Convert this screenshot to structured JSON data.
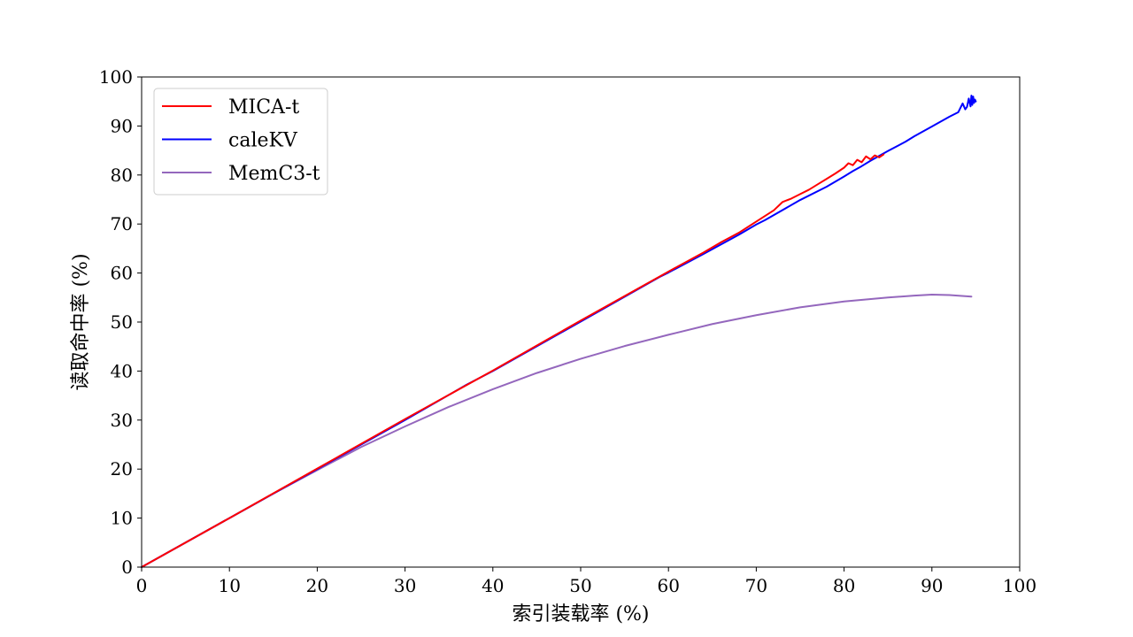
{
  "chart_data": {
    "type": "line",
    "title": "",
    "xlabel": "索引装载率 (%)",
    "ylabel": "读取命中率 (%)",
    "xlim": [
      0,
      100
    ],
    "ylim": [
      0,
      100
    ],
    "xticks": [
      "0",
      "10",
      "20",
      "30",
      "40",
      "50",
      "60",
      "70",
      "80",
      "90",
      "100"
    ],
    "yticks": [
      "0",
      "10",
      "20",
      "30",
      "40",
      "50",
      "60",
      "70",
      "80",
      "90",
      "100"
    ],
    "grid": false,
    "legend_position": "upper-left",
    "series": [
      {
        "name": "MICA-t",
        "color": "#ff0000",
        "x": [
          0,
          10,
          20,
          30,
          40,
          50,
          60,
          64,
          66,
          68,
          70,
          72,
          73,
          74,
          75,
          76,
          77,
          78,
          79,
          80,
          80.5,
          81,
          81.5,
          82,
          82.5,
          83,
          83.5,
          84,
          84.5
        ],
        "y": [
          0,
          10,
          20.1,
          30.2,
          40.1,
          50.3,
          60.3,
          64.2,
          66.3,
          68.2,
          70.5,
          72.8,
          74.5,
          75.2,
          76.1,
          77.0,
          78.1,
          79.2,
          80.3,
          81.5,
          82.4,
          82.0,
          83.1,
          82.6,
          83.8,
          83.2,
          84.0,
          83.6,
          84.2
        ]
      },
      {
        "name": "caleKV",
        "color": "#0000ff",
        "x": [
          0,
          10,
          20,
          30,
          37,
          40,
          50,
          59,
          60,
          64,
          68,
          70,
          71,
          75,
          78,
          80,
          81,
          81.5,
          82,
          83,
          85,
          87,
          88,
          90,
          92,
          93,
          93.5,
          93.8,
          94,
          94.2,
          94.4,
          94.5,
          94.6,
          94.7,
          94.8,
          94.9,
          95.0
        ],
        "y": [
          0,
          10,
          20,
          30,
          37.2,
          40,
          50.1,
          59.2,
          60.1,
          63.9,
          67.8,
          69.9,
          70.8,
          74.9,
          77.6,
          79.7,
          80.8,
          81.3,
          81.8,
          82.9,
          84.9,
          86.8,
          87.9,
          89.9,
          91.9,
          92.8,
          94.6,
          93.4,
          93.9,
          95.6,
          94.0,
          96.2,
          94.3,
          96.0,
          94.7,
          95.4,
          95.0
        ]
      },
      {
        "name": "MemC3-t",
        "color": "#9467bd",
        "x": [
          0,
          5,
          10,
          15,
          20,
          25,
          30,
          35,
          40,
          45,
          50,
          55,
          60,
          65,
          70,
          75,
          80,
          85,
          88,
          90,
          92,
          94.5
        ],
        "y": [
          0,
          5,
          10,
          15,
          19.8,
          24.5,
          28.7,
          32.7,
          36.3,
          39.6,
          42.5,
          45.1,
          47.4,
          49.6,
          51.4,
          53.0,
          54.2,
          55.0,
          55.4,
          55.6,
          55.5,
          55.2
        ]
      }
    ]
  }
}
